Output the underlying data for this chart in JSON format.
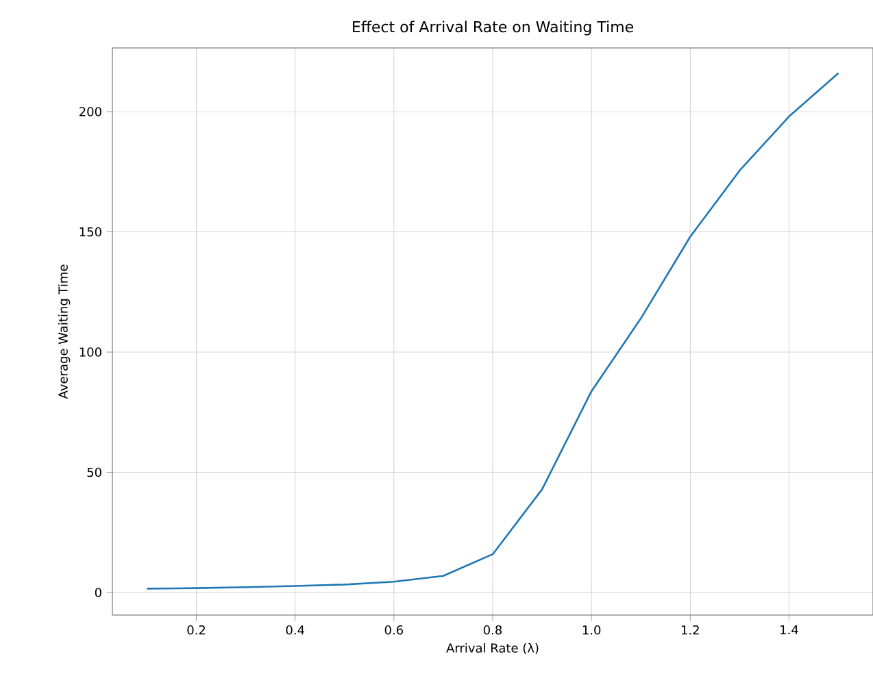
{
  "chart_data": {
    "type": "line",
    "title": "Effect of Arrival Rate on Waiting Time",
    "xlabel": "Arrival Rate (λ)",
    "ylabel": "Average Waiting Time",
    "x": [
      0.1,
      0.2,
      0.3,
      0.4,
      0.5,
      0.6,
      0.7,
      0.8,
      0.9,
      1.0,
      1.1,
      1.2,
      1.3,
      1.4,
      1.5
    ],
    "series": [
      {
        "color": "#1f77b4",
        "values": [
          1.6,
          1.8,
          2.2,
          2.7,
          3.3,
          4.5,
          6.9,
          15.9,
          42.9,
          83.7,
          114,
          148,
          175.5,
          198,
          216
        ]
      }
    ],
    "xlim": [
      0.03,
      1.57
    ],
    "ylim": [
      -9.4,
      226.5
    ],
    "xticks": [
      {
        "value": 0.2,
        "label": "0.2"
      },
      {
        "value": 0.4,
        "label": "0.4"
      },
      {
        "value": 0.6,
        "label": "0.6"
      },
      {
        "value": 0.8,
        "label": "0.8"
      },
      {
        "value": 1.0,
        "label": "1.0"
      },
      {
        "value": 1.2,
        "label": "1.2"
      },
      {
        "value": 1.4,
        "label": "1.4"
      }
    ],
    "yticks": [
      0,
      50,
      100,
      150,
      200
    ],
    "grid": true,
    "marker": "none",
    "line_style": "solid"
  }
}
